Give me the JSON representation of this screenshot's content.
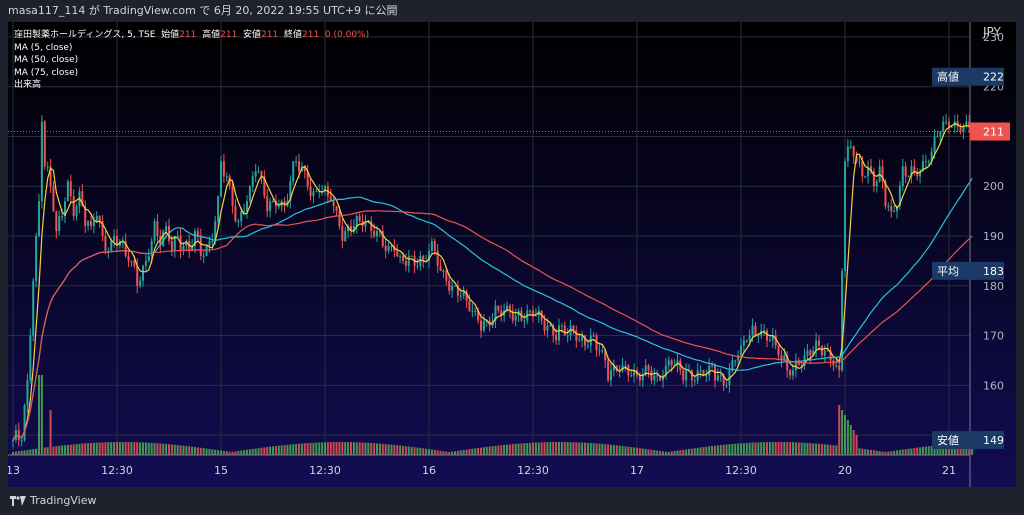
{
  "header": {
    "publisher": "masa117_114 が TradingView.com で 6月 20, 2022 19:55 UTC+9 に公開"
  },
  "legend": {
    "symbol": "窪田製薬ホールディングス, 5, TSE",
    "open_label": "始値",
    "open": "211",
    "high_label": "高値",
    "high": "211",
    "low_label": "安値",
    "low": "211",
    "close_label": "終値",
    "close": "211",
    "change": "0 (0.00%)",
    "studies": [
      "MA (5, close)",
      "MA (50, close)",
      "MA (75, close)",
      "出来高"
    ]
  },
  "footer": {
    "logo_text": "TradingView"
  },
  "colors": {
    "bull": "#26a69a",
    "bear": "#ef5350",
    "ma5": "#f7d23e",
    "ma50": "#26c6da",
    "ma75": "#ef5350",
    "vol_bull": "#4caf50",
    "vol_bear": "#ef5350",
    "badge": "#1c3a66",
    "last_price": "#ef5350"
  },
  "chart_data": {
    "type": "candlestick",
    "currency": "JPY",
    "y_ticks": [
      230,
      220,
      210,
      200,
      190,
      180,
      170,
      160,
      150
    ],
    "ylim": [
      146,
      233
    ],
    "x_ticks": [
      "13",
      "12:30",
      "15",
      "12:30",
      "16",
      "12:30",
      "17",
      "12:30",
      "20",
      "21"
    ],
    "x_tick_positions": [
      0,
      36,
      72,
      108,
      144,
      180,
      216,
      252,
      288,
      324
    ],
    "bars_count": 333,
    "price_badges": [
      {
        "label": "高値",
        "value": "222",
        "price": 222
      },
      {
        "label": "平均",
        "value": "183",
        "price": 183
      },
      {
        "label": "安値",
        "value": "149",
        "price": 149
      }
    ],
    "last_price": {
      "value": "211",
      "price": 211
    },
    "close_path": [
      [
        0,
        149
      ],
      [
        3,
        149
      ],
      [
        5,
        160
      ],
      [
        7,
        182
      ],
      [
        9,
        197
      ],
      [
        10,
        215
      ],
      [
        11,
        205
      ],
      [
        13,
        200
      ],
      [
        15,
        190
      ],
      [
        17,
        194
      ],
      [
        19,
        201
      ],
      [
        21,
        196
      ],
      [
        23,
        198
      ],
      [
        25,
        193
      ],
      [
        27,
        190
      ],
      [
        29,
        195
      ],
      [
        31,
        190
      ],
      [
        33,
        188
      ],
      [
        35,
        190
      ],
      [
        37,
        188
      ],
      [
        39,
        186
      ],
      [
        41,
        184
      ],
      [
        43,
        182
      ],
      [
        45,
        184
      ],
      [
        47,
        187
      ],
      [
        49,
        191
      ],
      [
        51,
        188
      ],
      [
        53,
        191
      ],
      [
        55,
        189
      ],
      [
        57,
        190
      ],
      [
        59,
        188
      ],
      [
        61,
        186
      ],
      [
        63,
        190
      ],
      [
        65,
        187
      ],
      [
        67,
        188
      ],
      [
        69,
        191
      ],
      [
        71,
        197
      ],
      [
        72,
        204
      ],
      [
        74,
        201
      ],
      [
        76,
        196
      ],
      [
        78,
        193
      ],
      [
        80,
        197
      ],
      [
        82,
        199
      ],
      [
        84,
        204
      ],
      [
        86,
        200
      ],
      [
        88,
        196
      ],
      [
        90,
        197
      ],
      [
        92,
        198
      ],
      [
        94,
        196
      ],
      [
        96,
        201
      ],
      [
        98,
        204
      ],
      [
        100,
        203
      ],
      [
        102,
        201
      ],
      [
        104,
        199
      ],
      [
        106,
        200
      ],
      [
        108,
        198
      ],
      [
        110,
        197
      ],
      [
        112,
        194
      ],
      [
        114,
        191
      ],
      [
        116,
        192
      ],
      [
        118,
        193
      ],
      [
        120,
        192
      ],
      [
        122,
        192
      ],
      [
        124,
        191
      ],
      [
        126,
        191
      ],
      [
        128,
        190
      ],
      [
        130,
        187
      ],
      [
        132,
        187
      ],
      [
        134,
        184
      ],
      [
        136,
        185
      ],
      [
        138,
        186
      ],
      [
        140,
        186
      ],
      [
        142,
        185
      ],
      [
        144,
        187
      ],
      [
        146,
        186
      ],
      [
        148,
        183
      ],
      [
        150,
        182
      ],
      [
        152,
        180
      ],
      [
        154,
        179
      ],
      [
        156,
        177
      ],
      [
        158,
        175
      ],
      [
        160,
        174
      ],
      [
        162,
        173
      ],
      [
        164,
        173
      ],
      [
        166,
        174
      ],
      [
        168,
        174
      ],
      [
        170,
        174
      ],
      [
        172,
        175
      ],
      [
        174,
        174
      ],
      [
        176,
        175
      ],
      [
        178,
        174
      ],
      [
        180,
        174
      ],
      [
        182,
        173
      ],
      [
        184,
        172
      ],
      [
        186,
        172
      ],
      [
        188,
        171
      ],
      [
        190,
        171
      ],
      [
        192,
        170
      ],
      [
        194,
        170
      ],
      [
        196,
        169
      ],
      [
        198,
        169
      ],
      [
        200,
        170
      ],
      [
        202,
        168
      ],
      [
        204,
        165
      ],
      [
        206,
        162
      ],
      [
        208,
        163
      ],
      [
        210,
        165
      ],
      [
        212,
        164
      ],
      [
        214,
        162
      ],
      [
        216,
        161
      ],
      [
        218,
        162
      ],
      [
        220,
        163
      ],
      [
        222,
        162
      ],
      [
        224,
        162
      ],
      [
        226,
        163
      ],
      [
        228,
        164
      ],
      [
        230,
        163
      ],
      [
        232,
        163
      ],
      [
        234,
        163
      ],
      [
        236,
        162
      ],
      [
        238,
        162
      ],
      [
        240,
        162
      ],
      [
        242,
        163
      ],
      [
        244,
        162
      ],
      [
        246,
        161
      ],
      [
        248,
        163
      ],
      [
        250,
        165
      ],
      [
        252,
        166
      ],
      [
        254,
        170
      ],
      [
        256,
        171
      ],
      [
        258,
        172
      ],
      [
        260,
        170
      ],
      [
        262,
        169
      ],
      [
        264,
        167
      ],
      [
        266,
        165
      ],
      [
        268,
        164
      ],
      [
        270,
        164
      ],
      [
        272,
        165
      ],
      [
        274,
        165
      ],
      [
        276,
        166
      ],
      [
        278,
        168
      ],
      [
        280,
        168
      ],
      [
        282,
        167
      ],
      [
        284,
        165
      ],
      [
        286,
        162
      ],
      [
        288,
        205
      ],
      [
        290,
        208
      ],
      [
        292,
        206
      ],
      [
        294,
        203
      ],
      [
        296,
        204
      ],
      [
        298,
        200
      ],
      [
        300,
        202
      ],
      [
        302,
        197
      ],
      [
        304,
        195
      ],
      [
        306,
        198
      ],
      [
        308,
        203
      ],
      [
        310,
        202
      ],
      [
        312,
        202
      ],
      [
        314,
        203
      ],
      [
        316,
        206
      ],
      [
        318,
        208
      ],
      [
        320,
        211
      ]
    ],
    "series": [
      {
        "name": "MA (5, close)",
        "source": "close",
        "period": 5
      },
      {
        "name": "MA (50, close)",
        "source": "close",
        "period": 50
      },
      {
        "name": "MA (75, close)",
        "source": "close",
        "period": 75
      },
      {
        "name": "出来高",
        "source": "volume"
      }
    ]
  }
}
